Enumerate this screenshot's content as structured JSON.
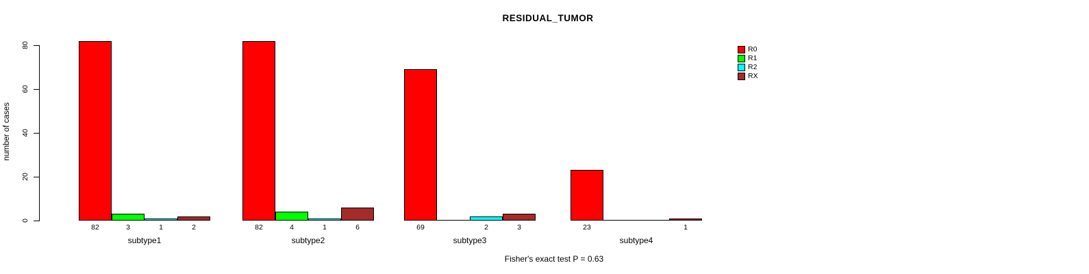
{
  "chart_data": {
    "type": "bar",
    "title": "RESIDUAL_TUMOR",
    "ylabel": "number of cases",
    "xlabel": "",
    "yticks": [
      0,
      20,
      40,
      60,
      80
    ],
    "ylim": [
      0,
      80
    ],
    "grid": false,
    "legend_position": "right",
    "categories": [
      "subtype1",
      "subtype2",
      "subtype3",
      "subtype4"
    ],
    "series": [
      {
        "name": "R0",
        "color": "#FF0000",
        "values": [
          82,
          82,
          69,
          23
        ]
      },
      {
        "name": "R1",
        "color": "#00FF00",
        "values": [
          3,
          4,
          0,
          0
        ]
      },
      {
        "name": "R2",
        "color": "#00FFFF",
        "values": [
          1,
          1,
          2,
          0
        ]
      },
      {
        "name": "RX",
        "color": "#A52A2A",
        "values": [
          2,
          6,
          3,
          1
        ]
      }
    ],
    "annotation": "Fisher's exact test P = 0.63"
  }
}
